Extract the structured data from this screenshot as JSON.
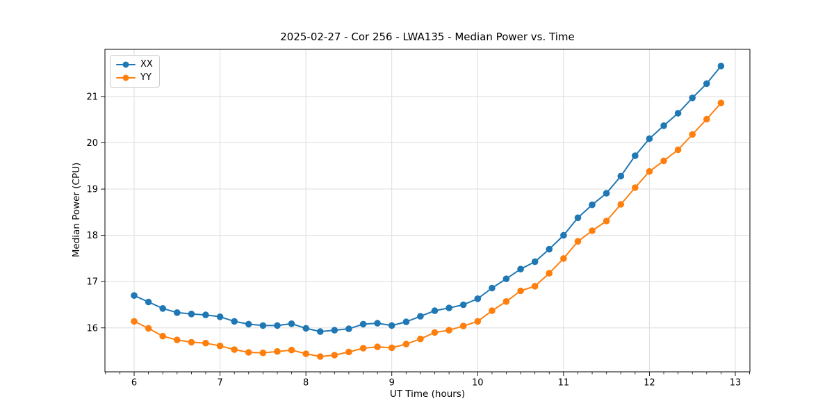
{
  "figure": {
    "background": "#ffffff"
  },
  "chart_data": {
    "type": "line",
    "title": "2025-02-27 - Cor 256 - LWA135 - Median Power vs. Time",
    "xlabel": "UT Time (hours)",
    "ylabel": "Median Power (CPU)",
    "xlim": [
      5.66,
      13.17
    ],
    "ylim": [
      15.05,
      22.02
    ],
    "xticks": [
      6,
      7,
      8,
      9,
      10,
      11,
      12,
      13
    ],
    "yticks": [
      16,
      17,
      18,
      19,
      20,
      21
    ],
    "x_minor_step": 0.166667,
    "grid": true,
    "grid_color": "#dddddd",
    "spine_color": "#000000",
    "legend_position": "upper left",
    "x": [
      6.0,
      6.167,
      6.333,
      6.5,
      6.667,
      6.833,
      7.0,
      7.167,
      7.333,
      7.5,
      7.667,
      7.833,
      8.0,
      8.167,
      8.333,
      8.5,
      8.667,
      8.833,
      9.0,
      9.167,
      9.333,
      9.5,
      9.667,
      9.833,
      10.0,
      10.167,
      10.333,
      10.5,
      10.667,
      10.833,
      11.0,
      11.167,
      11.333,
      11.5,
      11.667,
      11.833,
      12.0,
      12.167,
      12.333,
      12.5,
      12.667,
      12.833
    ],
    "series": [
      {
        "name": "XX",
        "color": "#1f77b4",
        "values": [
          16.7,
          16.56,
          16.42,
          16.33,
          16.3,
          16.28,
          16.24,
          16.14,
          16.08,
          16.05,
          16.05,
          16.09,
          15.99,
          15.92,
          15.95,
          15.98,
          16.08,
          16.1,
          16.05,
          16.13,
          16.25,
          16.37,
          16.43,
          16.5,
          16.63,
          16.86,
          17.06,
          17.27,
          17.43,
          17.7,
          18.0,
          18.38,
          18.66,
          18.91,
          19.28,
          19.72,
          20.09,
          20.37,
          20.64,
          20.97,
          21.28,
          21.66
        ]
      },
      {
        "name": "YY",
        "color": "#ff7f0e",
        "values": [
          16.14,
          15.99,
          15.82,
          15.74,
          15.69,
          15.67,
          15.61,
          15.53,
          15.47,
          15.46,
          15.49,
          15.52,
          15.44,
          15.38,
          15.41,
          15.48,
          15.56,
          15.59,
          15.57,
          15.65,
          15.76,
          15.9,
          15.95,
          16.04,
          16.14,
          16.37,
          16.57,
          16.8,
          16.9,
          17.18,
          17.5,
          17.87,
          18.1,
          18.31,
          18.67,
          19.03,
          19.38,
          19.61,
          19.85,
          20.18,
          20.51,
          20.86
        ]
      }
    ]
  }
}
